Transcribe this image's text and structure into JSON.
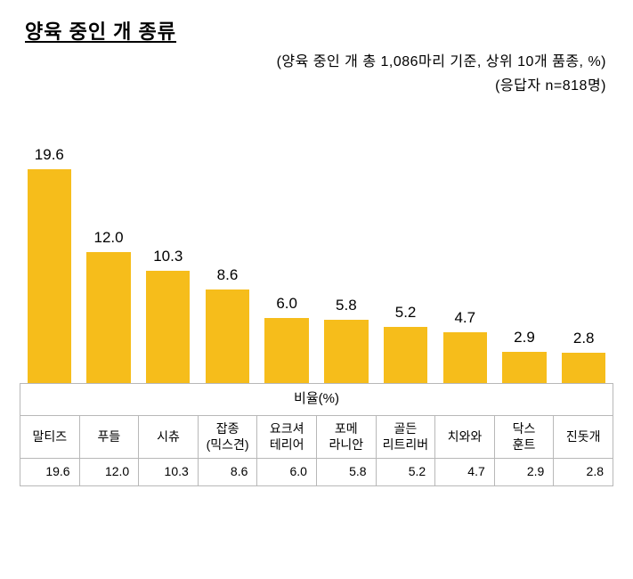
{
  "title": "양육 중인 개 종류",
  "subtitle1": "(양육 중인 개 총 1,086마리 기준, 상위 10개 품종, %)",
  "subtitle2": "(응답자 n=818명)",
  "chart": {
    "type": "bar",
    "bar_color": "#f6bd1b",
    "background_color": "#ffffff",
    "ylim_max": 19.6,
    "bar_width_pct": 74,
    "value_fontsize": 17,
    "category_fontsize": 14,
    "table_border_color": "#b8b8b8",
    "header_label": "비율(%)",
    "categories": [
      "말티즈",
      "푸들",
      "시츄",
      "잡종\n(믹스견)",
      "요크셔\n테리어",
      "포메\n라니안",
      "골든\n리트리버",
      "치와와",
      "닥스\n훈트",
      "진돗개"
    ],
    "values": [
      19.6,
      12.0,
      10.3,
      8.6,
      6.0,
      5.8,
      5.2,
      4.7,
      2.9,
      2.8
    ],
    "value_labels": [
      "19.6",
      "12.0",
      "10.3",
      "8.6",
      "6.0",
      "5.8",
      "5.2",
      "4.7",
      "2.9",
      "2.8"
    ]
  }
}
